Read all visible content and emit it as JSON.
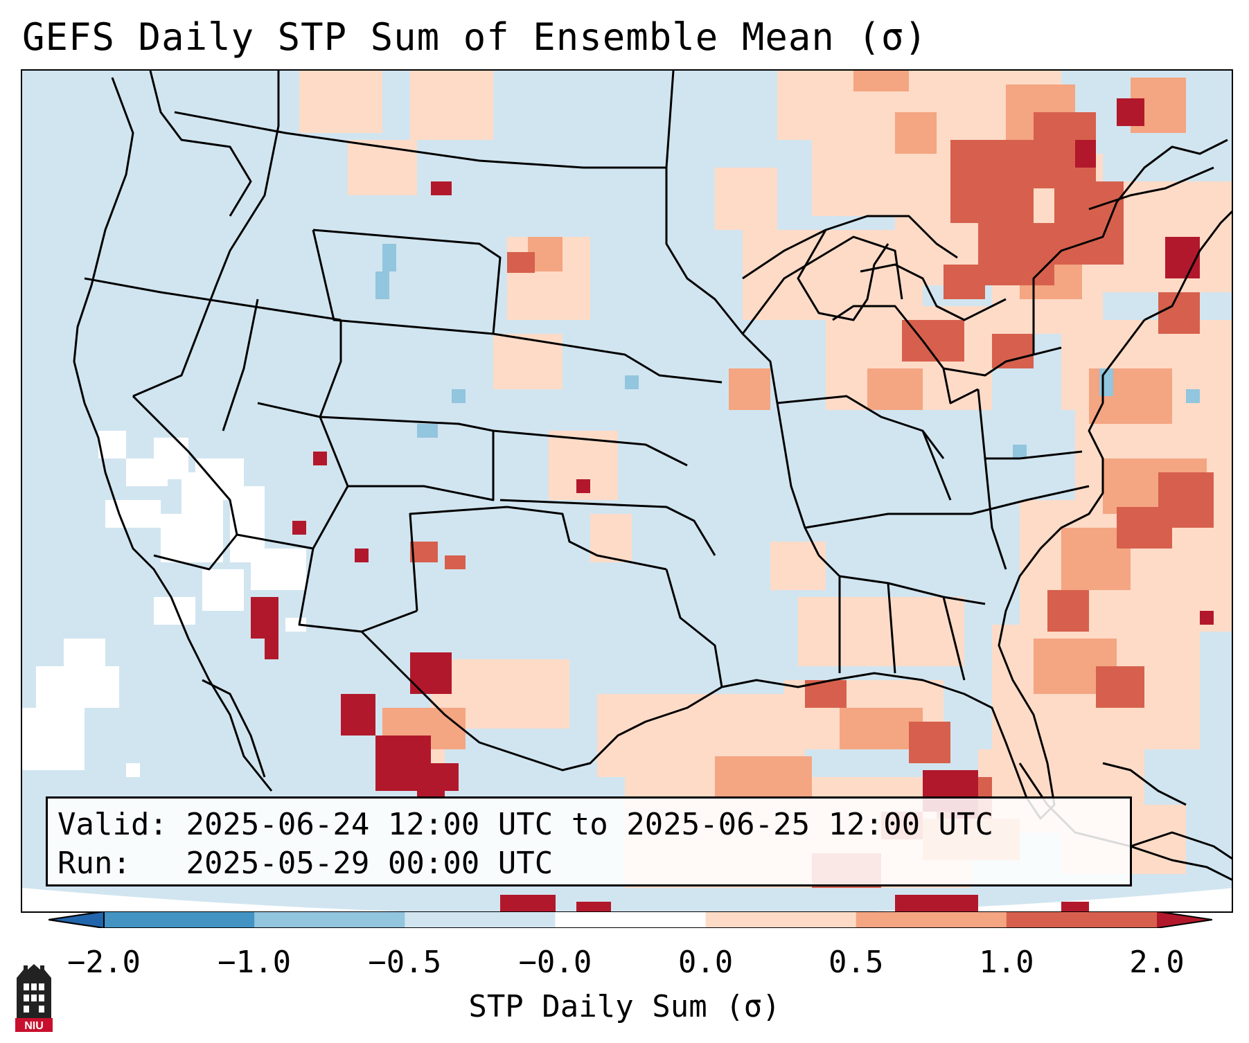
{
  "title": "GEFS Daily STP Sum of Ensemble Mean (σ)",
  "info": {
    "valid_label": "Valid:",
    "valid_value": "2025-06-24 12:00 UTC to 2025-06-25 12:00 UTC",
    "run_label": "Run:",
    "run_value": "2025-05-29 00:00 UTC"
  },
  "colorbar": {
    "label": "STP Daily Sum (σ)",
    "ticks": [
      "−2.0",
      "−1.0",
      "−0.5",
      "−0.0",
      "0.0",
      "0.5",
      "1.0",
      "2.0"
    ],
    "bins": [
      {
        "range": "<-2.0",
        "color": "#2166ac"
      },
      {
        "range": "-2.0 to -1.0",
        "color": "#4393c3"
      },
      {
        "range": "-1.0 to -0.5",
        "color": "#92c5de"
      },
      {
        "range": "-0.5 to -0.0",
        "color": "#d1e5f0"
      },
      {
        "range": "-0.0 to 0.0",
        "color": "#ffffff"
      },
      {
        "range": "0.0 to 0.5",
        "color": "#fddbc7"
      },
      {
        "range": "0.5 to 1.0",
        "color": "#f4a582"
      },
      {
        "range": "1.0 to 2.0",
        "color": "#d6604d"
      },
      {
        "range": ">2.0",
        "color": "#b2182b"
      }
    ]
  },
  "logo": {
    "text": "NIU",
    "color": "#c8102e"
  }
}
